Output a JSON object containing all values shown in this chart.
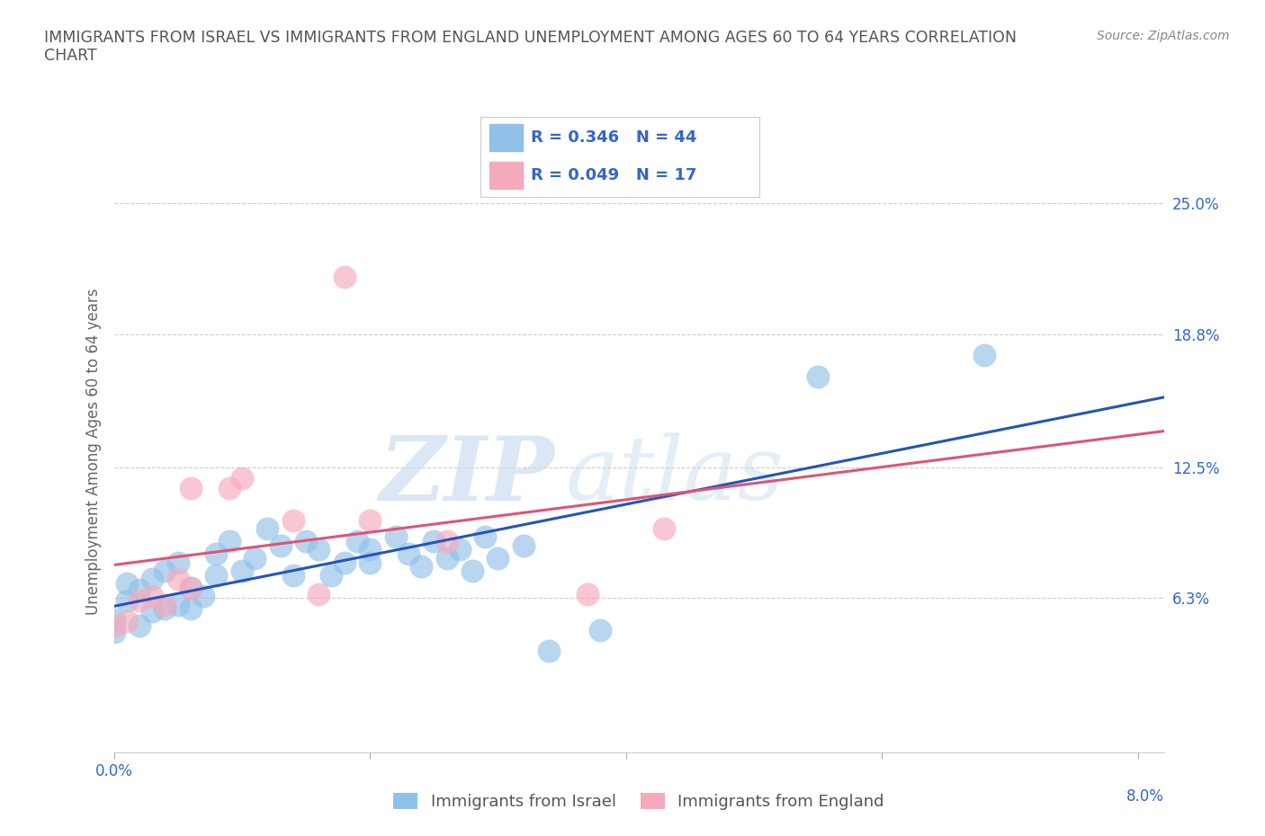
{
  "title": "IMMIGRANTS FROM ISRAEL VS IMMIGRANTS FROM ENGLAND UNEMPLOYMENT AMONG AGES 60 TO 64 YEARS CORRELATION\nCHART",
  "source": "Source: ZipAtlas.com",
  "ylabel": "Unemployment Among Ages 60 to 64 years",
  "y_tick_labels": [
    "6.3%",
    "12.5%",
    "18.8%",
    "25.0%"
  ],
  "y_tick_values": [
    0.063,
    0.125,
    0.188,
    0.25
  ],
  "xlim": [
    0.0,
    0.082
  ],
  "ylim": [
    -0.01,
    0.275
  ],
  "israel_color": "#92c0e8",
  "england_color": "#f5aabc",
  "israel_line_color": "#2255bb",
  "england_line_color": "#dd5577",
  "israel_R": 0.346,
  "israel_N": 44,
  "england_R": 0.049,
  "england_N": 17,
  "legend_label_israel": "Immigrants from Israel",
  "legend_label_england": "Immigrants from England",
  "israel_x": [
    0.0,
    0.0,
    0.001,
    0.001,
    0.002,
    0.002,
    0.003,
    0.003,
    0.004,
    0.004,
    0.005,
    0.005,
    0.006,
    0.006,
    0.007,
    0.008,
    0.008,
    0.009,
    0.01,
    0.011,
    0.012,
    0.013,
    0.014,
    0.015,
    0.016,
    0.017,
    0.018,
    0.019,
    0.02,
    0.02,
    0.022,
    0.023,
    0.024,
    0.025,
    0.026,
    0.027,
    0.028,
    0.029,
    0.03,
    0.032,
    0.034,
    0.038,
    0.055,
    0.068
  ],
  "israel_y": [
    0.047,
    0.053,
    0.062,
    0.07,
    0.05,
    0.067,
    0.057,
    0.072,
    0.058,
    0.076,
    0.06,
    0.08,
    0.058,
    0.068,
    0.064,
    0.084,
    0.074,
    0.09,
    0.076,
    0.082,
    0.096,
    0.088,
    0.074,
    0.09,
    0.086,
    0.074,
    0.08,
    0.09,
    0.08,
    0.086,
    0.092,
    0.084,
    0.078,
    0.09,
    0.082,
    0.086,
    0.076,
    0.092,
    0.082,
    0.088,
    0.038,
    0.048,
    0.168,
    0.178
  ],
  "england_x": [
    0.0,
    0.001,
    0.002,
    0.003,
    0.004,
    0.005,
    0.006,
    0.006,
    0.009,
    0.01,
    0.014,
    0.016,
    0.018,
    0.02,
    0.026,
    0.037,
    0.043
  ],
  "england_y": [
    0.05,
    0.052,
    0.062,
    0.064,
    0.06,
    0.072,
    0.068,
    0.115,
    0.115,
    0.12,
    0.1,
    0.065,
    0.215,
    0.1,
    0.09,
    0.065,
    0.096
  ],
  "watermark_zip": "ZIP",
  "watermark_atlas": "atlas",
  "background_color": "#ffffff",
  "grid_color": "#cccccc",
  "title_color": "#555555",
  "axis_label_color": "#666666",
  "tick_color": "#3366cc",
  "source_color": "#888888"
}
